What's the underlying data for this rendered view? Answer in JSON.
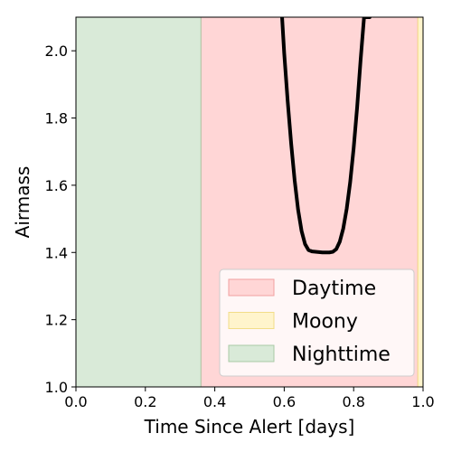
{
  "chart_data": {
    "type": "line",
    "title": "",
    "xlabel": "Time Since Alert [days]",
    "ylabel": "Airmass",
    "xlim": [
      0.0,
      1.0
    ],
    "ylim": [
      1.0,
      2.1
    ],
    "x_ticks": [
      0.0,
      0.2,
      0.4,
      0.6,
      0.8,
      1.0
    ],
    "x_tick_labels": [
      "0.0",
      "0.2",
      "0.4",
      "0.6",
      "0.8",
      "1.0"
    ],
    "y_ticks": [
      1.0,
      1.2,
      1.4,
      1.6,
      1.8,
      2.0
    ],
    "y_tick_labels": [
      "1.0",
      "1.2",
      "1.4",
      "1.6",
      "1.8",
      "2.0"
    ],
    "grid": false,
    "legend_position": "lower-right",
    "shaded_regions": [
      {
        "label": "Daytime",
        "x_start": 0.36,
        "x_end": 0.985,
        "color": "#ffd6d6",
        "edge": "#f2a0a0"
      },
      {
        "label": "Moony",
        "x_start": 0.985,
        "x_end": 1.0,
        "color": "#fff4cc",
        "edge": "#f2dd88"
      },
      {
        "label": "Nighttime",
        "x_start": 0.0,
        "x_end": 0.36,
        "color": "#d9ead8",
        "edge": "#a9c9a6"
      }
    ],
    "legend": [
      "Daytime",
      "Moony",
      "Nighttime"
    ],
    "series": [
      {
        "color": "#000000",
        "x": [
          0.5938,
          0.6,
          0.61,
          0.62,
          0.63,
          0.64,
          0.65,
          0.66,
          0.67,
          0.68,
          0.69,
          0.7,
          0.71,
          0.72,
          0.73,
          0.74,
          0.75,
          0.76,
          0.77,
          0.78,
          0.79,
          0.8,
          0.81,
          0.82,
          0.83,
          0.84,
          0.8461
        ],
        "y": [
          2.1,
          1.992,
          1.85,
          1.724,
          1.615,
          1.527,
          1.464,
          1.425,
          1.407,
          1.403,
          1.402,
          1.401,
          1.4,
          1.4,
          1.4,
          1.402,
          1.41,
          1.432,
          1.471,
          1.53,
          1.609,
          1.71,
          1.831,
          1.972,
          2.1,
          2.1,
          2.1
        ]
      }
    ]
  }
}
